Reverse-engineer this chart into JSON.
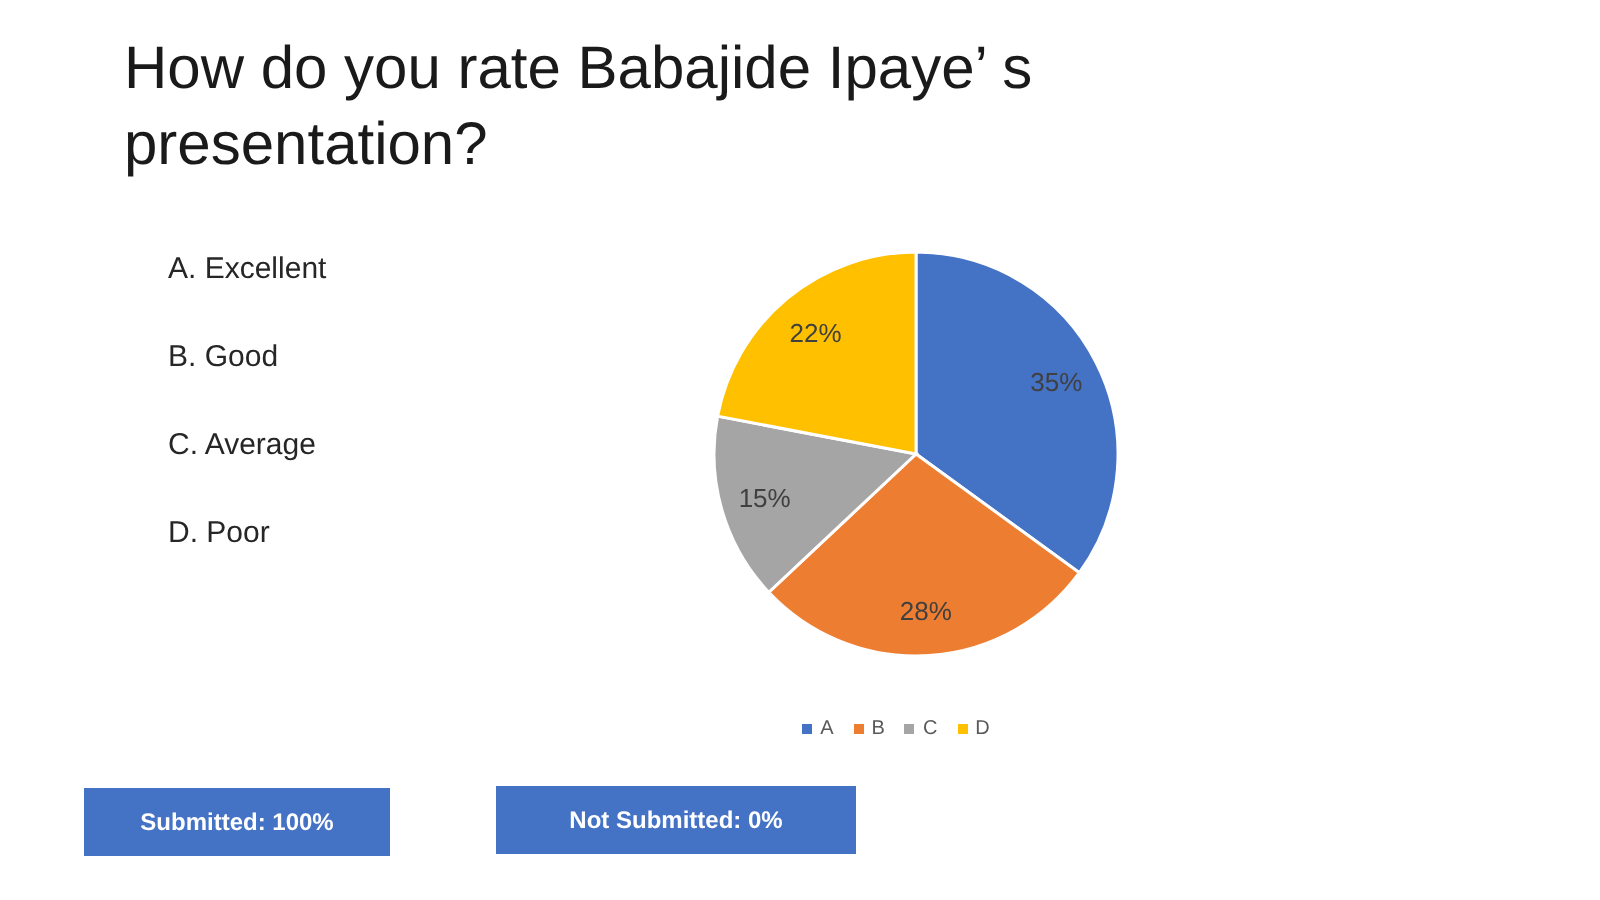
{
  "chart_data": {
    "type": "pie",
    "title": "How do you rate Babajide Ipaye’ s presentation?",
    "categories": [
      "A",
      "B",
      "C",
      "D"
    ],
    "values": [
      35,
      28,
      15,
      22
    ],
    "colors": [
      "#4472c4",
      "#ed7d31",
      "#a5a5a5",
      "#ffc000"
    ],
    "value_labels": [
      "35%",
      "28%",
      "15%",
      "22%"
    ],
    "legend": "bottom",
    "annotations": [
      "A. Excellent",
      "B. Good",
      "C. Average",
      "D. Poor",
      "Submitted: 100%",
      "Not Submitted: 0%"
    ]
  }
}
